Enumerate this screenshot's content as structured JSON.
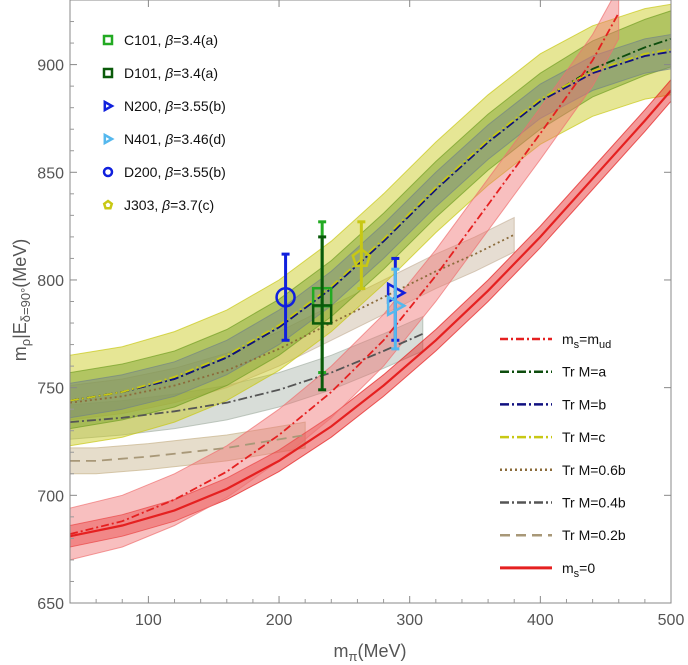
{
  "chart_data": {
    "type": "line",
    "xlabel_main": "m",
    "xlabel_sub": "π",
    "xlabel_unit": "(MeV)",
    "ylabel_main": "m",
    "ylabel_sub1": "ρ",
    "ylabel_mid": "|E",
    "ylabel_sub2": "δ=90°",
    "ylabel_unit": "(MeV)",
    "xlim": [
      40,
      500
    ],
    "ylim": [
      650,
      930
    ],
    "xticks": [
      100,
      200,
      300,
      400,
      500
    ],
    "yticks": [
      650,
      700,
      750,
      800,
      850,
      900
    ],
    "lattice_points": [
      {
        "label": "C101, β=3.4(a)",
        "color": "#22aa22",
        "marker": "square",
        "x": 233,
        "y": 792,
        "err_lo": 35,
        "err_hi": 35
      },
      {
        "label": "D101, β=3.4(a)",
        "color": "#0a5a0a",
        "marker": "square",
        "x": 233,
        "y": 784,
        "err_lo": 35,
        "err_hi": 36
      },
      {
        "label": "N200, β=3.55(b)",
        "color": "#1020dd",
        "marker": "triangle-right",
        "x": 289,
        "y": 794,
        "err_lo": 22,
        "err_hi": 16
      },
      {
        "label": "N401, β=3.46(d)",
        "color": "#55b8ee",
        "marker": "triangle-right",
        "x": 289,
        "y": 788,
        "err_lo": 20,
        "err_hi": 17
      },
      {
        "label": "D200, β=3.55(b)",
        "color": "#1020dd",
        "marker": "circle",
        "x": 205,
        "y": 792,
        "err_lo": 20,
        "err_hi": 20
      },
      {
        "label": "J303, β=3.7(c)",
        "color": "#c8c814",
        "marker": "pentagon",
        "x": 263,
        "y": 810,
        "err_lo": 14,
        "err_hi": 17
      }
    ],
    "bands": [
      {
        "name": "Tr M=0.2b",
        "color": "#c8b48c",
        "x": [
          40,
          60,
          80,
          100,
          130,
          160,
          190,
          220
        ],
        "y": [
          716,
          716,
          717,
          718,
          720,
          722,
          725,
          728
        ],
        "halfwidth": 6
      },
      {
        "name": "Tr M=0.4b",
        "color": "#a8b4a8",
        "x": [
          40,
          80,
          120,
          160,
          200,
          240,
          280,
          310
        ],
        "y": [
          734,
          736,
          739,
          743,
          749,
          757,
          767,
          775
        ],
        "halfwidth": 8
      },
      {
        "name": "Tr M=0.6b",
        "color": "#c8b49c",
        "x": [
          40,
          80,
          120,
          160,
          200,
          240,
          280,
          320,
          350,
          380
        ],
        "y": [
          743,
          746,
          751,
          758,
          768,
          780,
          792,
          804,
          812,
          821
        ],
        "halfwidth": 8
      },
      {
        "name": "Tr M=a",
        "color": "#2e7d32",
        "x": [
          40,
          80,
          120,
          160,
          200,
          240,
          280,
          320,
          360,
          400,
          440,
          480,
          500
        ],
        "y": [
          744,
          748,
          754,
          764,
          778,
          796,
          818,
          842,
          864,
          883,
          898,
          908,
          912
        ],
        "halfwidth": 13
      },
      {
        "name": "Tr M=b",
        "color": "#3050e0",
        "x": [
          40,
          80,
          120,
          160,
          200,
          240,
          280,
          320,
          360,
          400,
          440,
          480,
          500
        ],
        "y": [
          744,
          748,
          754,
          764,
          778,
          796,
          818,
          842,
          864,
          883,
          896,
          904,
          906
        ],
        "halfwidth": 8
      },
      {
        "name": "Tr M=c",
        "color": "#c8c814",
        "x": [
          40,
          80,
          120,
          160,
          200,
          240,
          280,
          320,
          360,
          400,
          440,
          480,
          500
        ],
        "y": [
          744,
          748,
          755,
          765,
          779,
          797,
          819,
          843,
          865,
          884,
          897,
          905,
          907
        ],
        "halfwidth": 21
      },
      {
        "name": "m_s=0",
        "color": "#e52020",
        "x": [
          40,
          80,
          120,
          160,
          200,
          240,
          280,
          320,
          360,
          400,
          440,
          480,
          500
        ],
        "y": [
          681,
          686,
          693,
          703,
          716,
          732,
          751,
          772,
          795,
          820,
          847,
          874,
          888
        ],
        "halfwidth": 5
      },
      {
        "name": "m_s=m_ud",
        "color": "#f07070",
        "x": [
          40,
          80,
          120,
          160,
          200,
          240,
          280,
          320,
          360,
          400,
          440,
          460
        ],
        "y": [
          682,
          688,
          698,
          711,
          728,
          748,
          772,
          802,
          835,
          868,
          902,
          924
        ],
        "halfwidth": 12
      }
    ],
    "legend": [
      {
        "label_main": "m",
        "label_sub": "s",
        "label_rest": "=m",
        "label_sub2": "ud",
        "color": "#e52020",
        "style": "dashdot"
      },
      {
        "label": "Tr M=a",
        "color": "#0d4d0d",
        "style": "dashdot-thick"
      },
      {
        "label": "Tr M=b",
        "color": "#101080",
        "style": "dashdot-thick"
      },
      {
        "label": "Tr M=c",
        "color": "#c8c814",
        "style": "dashdot-thick"
      },
      {
        "label": "Tr M=0.6b",
        "color": "#8b6b3a",
        "style": "dotted"
      },
      {
        "label": "Tr M=0.4b",
        "color": "#555555",
        "style": "dashdot-gray"
      },
      {
        "label": "Tr M=0.2b",
        "color": "#a89878",
        "style": "dashed"
      },
      {
        "label_main": "m",
        "label_sub": "s",
        "label_rest": "=0",
        "color": "#e52020",
        "style": "solid"
      }
    ]
  }
}
